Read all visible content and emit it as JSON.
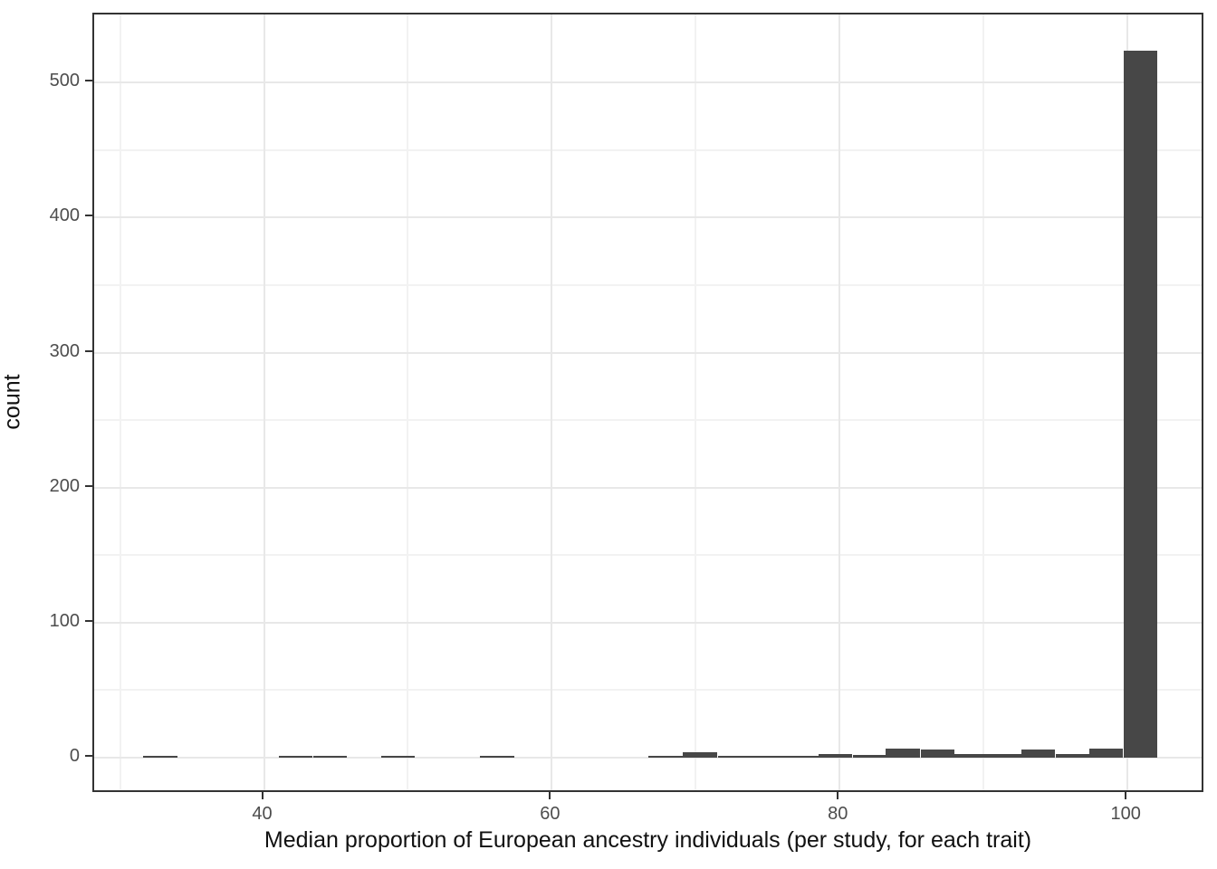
{
  "chart_data": {
    "type": "bar",
    "subtype": "histogram",
    "title": "",
    "xlabel": "Median proportion of European ancestry individuals (per study, for each trait)",
    "ylabel": "count",
    "x_major_ticks": [
      40,
      60,
      80,
      100
    ],
    "x_minor_gridlines": [
      30,
      50,
      70,
      90
    ],
    "y_major_ticks": [
      0,
      100,
      200,
      300,
      400,
      500
    ],
    "y_minor_gridlines": [
      50,
      150,
      250,
      350,
      450
    ],
    "xlim": [
      28.2,
      105.4
    ],
    "ylim": [
      0,
      550
    ],
    "grid": true,
    "legend": false,
    "binwidth": 2.36,
    "bars": [
      {
        "x": 32.8,
        "count": 1
      },
      {
        "x": 42.2,
        "count": 1
      },
      {
        "x": 44.6,
        "count": 1
      },
      {
        "x": 49.3,
        "count": 1
      },
      {
        "x": 56.2,
        "count": 1
      },
      {
        "x": 67.9,
        "count": 1
      },
      {
        "x": 70.3,
        "count": 4
      },
      {
        "x": 72.7,
        "count": 1
      },
      {
        "x": 75.0,
        "count": 1
      },
      {
        "x": 77.4,
        "count": 1
      },
      {
        "x": 79.7,
        "count": 3
      },
      {
        "x": 82.1,
        "count": 2
      },
      {
        "x": 84.4,
        "count": 7
      },
      {
        "x": 86.8,
        "count": 6
      },
      {
        "x": 89.1,
        "count": 3
      },
      {
        "x": 91.5,
        "count": 3
      },
      {
        "x": 93.8,
        "count": 6
      },
      {
        "x": 96.2,
        "count": 3
      },
      {
        "x": 98.5,
        "count": 7
      },
      {
        "x": 100.9,
        "count": 524
      }
    ],
    "colors": {
      "bar_fill": "#474747",
      "grid_major": "#e8e8e8",
      "grid_minor": "#f2f2f2",
      "panel_border": "#333333",
      "tick_mark": "#333333",
      "axis_text": "#4d4d4d",
      "axis_title": "#111111",
      "background": "#ffffff"
    }
  }
}
